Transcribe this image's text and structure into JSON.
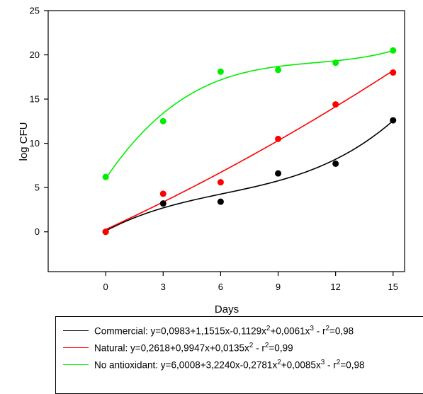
{
  "chart_data": {
    "type": "scatter",
    "xlabel": "Days",
    "ylabel": "log CFU",
    "xlim": [
      -3,
      15.6
    ],
    "ylim": [
      -4.5,
      25
    ],
    "xticks": [
      0,
      3,
      6,
      9,
      12,
      15
    ],
    "yticks": [
      0,
      5,
      10,
      15,
      20,
      25
    ],
    "xtick_labels": [
      "0",
      "3",
      "6",
      "9",
      "12",
      "15"
    ],
    "ytick_labels": [
      "0",
      "5",
      "10",
      "15",
      "20",
      "25"
    ],
    "x": [
      0,
      3,
      6,
      9,
      12,
      15
    ],
    "grid": false,
    "legend_position": "bottom",
    "series": [
      {
        "key": "commercial",
        "color": "#000000",
        "values": [
          0.0,
          3.2,
          3.4,
          6.6,
          7.7,
          12.6
        ],
        "fit": [
          0.0983,
          1.1515,
          -0.1129,
          0.0061
        ],
        "legend": "Commercial: y=0,0983+1,1515x-0,1129x²+0,0061x³ - r²=0,98"
      },
      {
        "key": "natural",
        "color": "#ff0000",
        "values": [
          0.0,
          4.3,
          5.6,
          10.5,
          14.4,
          18.0
        ],
        "fit": [
          0.2618,
          0.9947,
          0.0135
        ],
        "legend": "Natural: y=0,2618+0,9947x+0,0135x² - r²=0,99"
      },
      {
        "key": "no-antioxidant",
        "color": "#00ee00",
        "values": [
          6.2,
          12.5,
          18.1,
          18.3,
          19.1,
          20.5
        ],
        "fit": [
          6.0008,
          3.224,
          -0.2781,
          0.0085
        ],
        "legend": "No antioxidant: y=6,0008+3,2240x-0,2781x²+0,0085x³ - r²=0,98"
      }
    ]
  }
}
